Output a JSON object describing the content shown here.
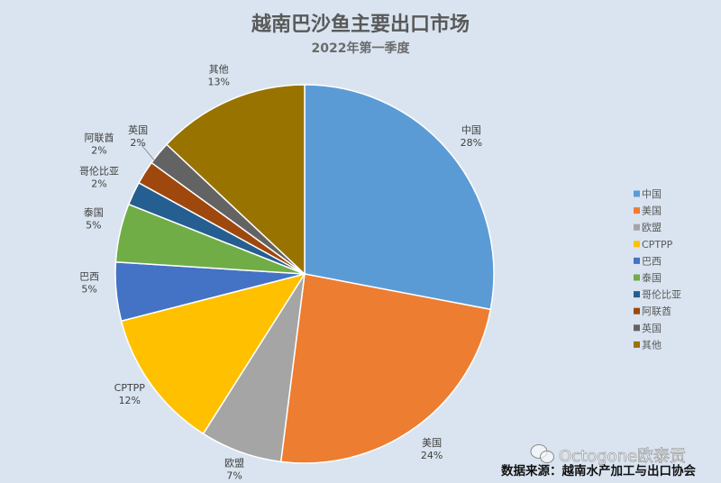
{
  "chart_data": {
    "type": "pie",
    "title": "越南巴沙鱼主要出口市场",
    "subtitle": "2022年第一季度",
    "categories": [
      "中国",
      "美国",
      "欧盟",
      "CPTPP",
      "巴西",
      "泰国",
      "哥伦比亚",
      "阿联酋",
      "英国",
      "其他"
    ],
    "values": [
      28,
      24,
      7,
      12,
      5,
      5,
      2,
      2,
      2,
      13
    ],
    "value_labels": [
      "28%",
      "24%",
      "7%",
      "12%",
      "5%",
      "5%",
      "2%",
      "2%",
      "2%",
      "13%"
    ],
    "colors": [
      "#5B9BD5",
      "#ED7D31",
      "#A5A5A5",
      "#FFC000",
      "#4472C4",
      "#70AD47",
      "#255E91",
      "#9E480E",
      "#636363",
      "#997300"
    ],
    "legend_position": "right"
  },
  "source": "数据来源：越南水产加工与出口协会",
  "watermark": "Octogone欧泰贡",
  "colors": {
    "background": "#D9E4F0",
    "title": "#595959",
    "slice_border": "#FFFFFF"
  }
}
